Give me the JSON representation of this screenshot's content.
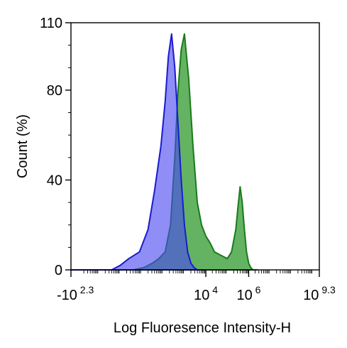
{
  "chart_data": {
    "type": "area",
    "title": "",
    "xlabel": "Log Fluoresence Intensity-H",
    "ylabel": "Count  (%)",
    "ylim": [
      0,
      110
    ],
    "y_ticks": [
      "0",
      "40",
      "80",
      "110"
    ],
    "y_tick_values": [
      0,
      40,
      80,
      110
    ],
    "x_tick_labels": [
      {
        "base": "-10",
        "exp": "2.3",
        "value": -2.3
      },
      {
        "base": "10",
        "exp": "4",
        "value": 4
      },
      {
        "base": "10",
        "exp": "6",
        "value": 6
      },
      {
        "base": "10",
        "exp": "9.3",
        "value": 9.3
      }
    ],
    "x_scale": "log",
    "grid": false,
    "series": [
      {
        "color": "#4848f0",
        "stroke": "#1a1ad0",
        "x": [
          -2.3,
          -0.4,
          0.0,
          0.4,
          0.9,
          1.3,
          1.6,
          1.9,
          2.1,
          2.25,
          2.4,
          2.55,
          2.7,
          2.85,
          3.0,
          3.15,
          3.3,
          3.45,
          3.6,
          3.75,
          3.9
        ],
        "values": [
          0,
          0,
          2,
          5,
          8,
          18,
          35,
          55,
          75,
          95,
          105,
          90,
          65,
          40,
          20,
          8,
          3,
          1,
          0,
          0,
          0
        ]
      },
      {
        "color": "#2f9a2f",
        "stroke": "#1a7a1a",
        "x": [
          -2.3,
          0.6,
          1.1,
          1.5,
          1.8,
          2.1,
          2.35,
          2.55,
          2.7,
          2.85,
          3.0,
          3.2,
          3.4,
          3.6,
          3.8,
          4.0,
          4.2,
          4.4,
          4.6,
          4.8,
          5.0,
          5.2,
          5.4,
          5.5,
          5.6,
          5.7,
          5.8,
          5.9,
          6.0,
          6.1,
          6.2,
          6.3,
          6.4
        ],
        "values": [
          0,
          0,
          1,
          3,
          5,
          8,
          20,
          50,
          80,
          98,
          105,
          85,
          55,
          30,
          20,
          15,
          12,
          8,
          7,
          6,
          5,
          8,
          18,
          28,
          37,
          30,
          18,
          8,
          3,
          1,
          0,
          0,
          0
        ]
      }
    ]
  }
}
